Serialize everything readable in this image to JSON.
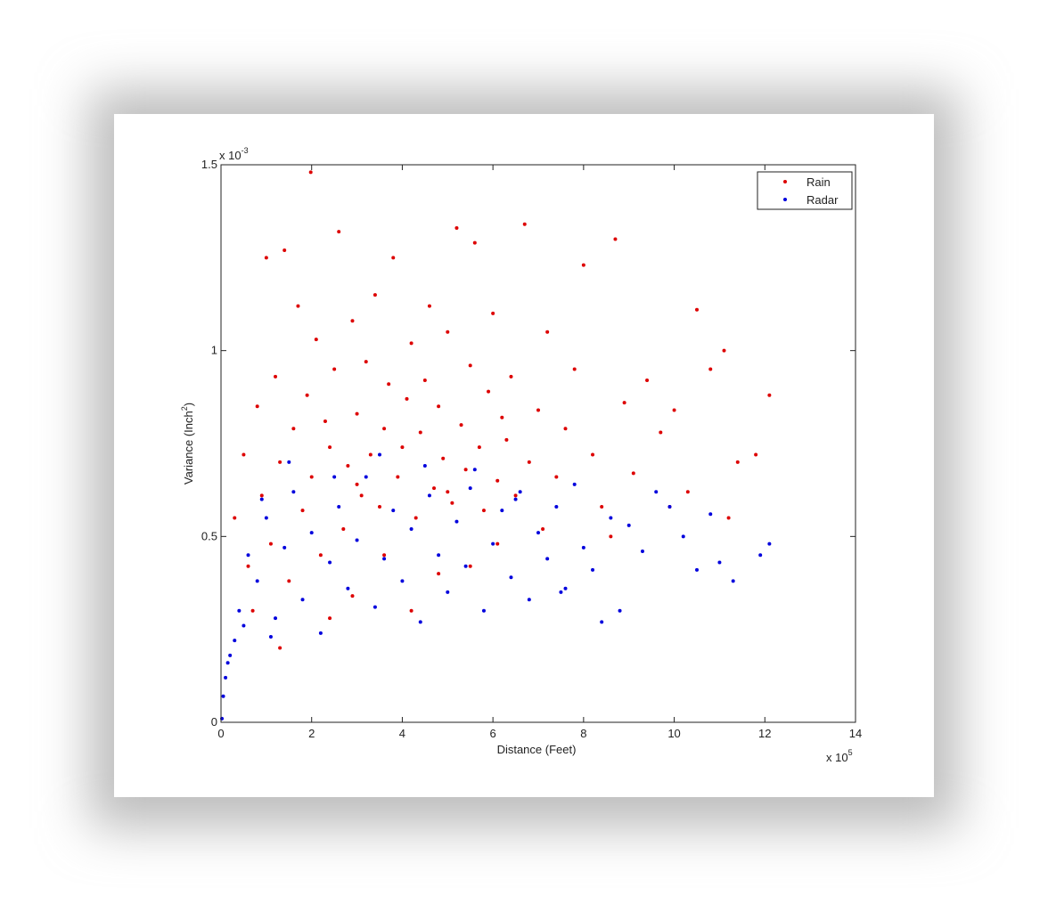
{
  "chart_data": {
    "type": "scatter",
    "xlabel": "Distance (Feet)",
    "x_exponent_base": "x 10",
    "x_exponent": "5",
    "ylabel_parts": [
      "Variance (Inch",
      "2",
      ")"
    ],
    "y_exponent_base": "x 10",
    "y_exponent": "-3",
    "xlim": [
      0,
      14
    ],
    "xticks": [
      0,
      2,
      4,
      6,
      8,
      10,
      12,
      14
    ],
    "ylim": [
      0,
      1.5
    ],
    "yticks": [
      0,
      0.5,
      1,
      1.5
    ],
    "grid": false,
    "legend": "upper right",
    "series": [
      {
        "name": "Rain",
        "color": "#dd0000",
        "x": [
          0.3,
          0.5,
          0.6,
          0.8,
          0.9,
          1.0,
          1.1,
          1.2,
          1.3,
          1.4,
          1.5,
          1.6,
          1.7,
          1.8,
          1.9,
          1.98,
          2.0,
          2.1,
          2.2,
          2.3,
          2.4,
          2.5,
          2.6,
          2.7,
          2.8,
          2.9,
          3.0,
          3.1,
          3.2,
          3.3,
          3.4,
          3.5,
          3.6,
          3.7,
          3.8,
          3.9,
          4.0,
          4.1,
          4.2,
          4.3,
          4.4,
          4.5,
          4.6,
          4.7,
          4.8,
          4.9,
          5.0,
          5.1,
          5.2,
          5.3,
          5.4,
          5.5,
          5.6,
          5.7,
          5.8,
          5.9,
          6.0,
          6.1,
          6.2,
          6.3,
          6.4,
          6.5,
          6.7,
          6.8,
          7.0,
          7.2,
          7.4,
          7.6,
          7.8,
          8.0,
          8.2,
          8.4,
          8.7,
          8.9,
          9.1,
          9.4,
          9.7,
          10.0,
          10.3,
          10.5,
          10.8,
          11.1,
          11.4,
          11.8,
          12.1,
          0.7,
          2.4,
          3.6,
          4.8,
          6.1,
          1.3,
          2.9,
          4.2,
          5.5,
          7.1,
          8.6,
          9.9,
          11.2,
          3.0,
          5.0
        ],
        "values": [
          0.55,
          0.72,
          0.42,
          0.85,
          0.61,
          1.25,
          0.48,
          0.93,
          0.7,
          1.27,
          0.38,
          0.79,
          1.12,
          0.57,
          0.88,
          1.48,
          0.66,
          1.03,
          0.45,
          0.81,
          0.74,
          0.95,
          1.32,
          0.52,
          0.69,
          1.08,
          0.83,
          0.61,
          0.97,
          0.72,
          1.15,
          0.58,
          0.79,
          0.91,
          1.25,
          0.66,
          0.74,
          0.87,
          1.02,
          0.55,
          0.78,
          0.92,
          1.12,
          0.63,
          0.85,
          0.71,
          1.05,
          0.59,
          1.33,
          0.8,
          0.68,
          0.96,
          1.29,
          0.74,
          0.57,
          0.89,
          1.1,
          0.65,
          0.82,
          0.76,
          0.93,
          0.61,
          1.34,
          0.7,
          0.84,
          1.05,
          0.66,
          0.79,
          0.95,
          1.23,
          0.72,
          0.58,
          1.3,
          0.86,
          0.67,
          0.92,
          0.78,
          0.84,
          0.62,
          1.11,
          0.95,
          1.0,
          0.7,
          0.72,
          0.88,
          0.3,
          0.28,
          0.45,
          0.4,
          0.48,
          0.2,
          0.34,
          0.3,
          0.42,
          0.52,
          0.5,
          0.58,
          0.55,
          0.64,
          0.62
        ]
      },
      {
        "name": "Radar",
        "color": "#0000dd",
        "x": [
          0.02,
          0.05,
          0.1,
          0.15,
          0.2,
          0.3,
          0.4,
          0.5,
          0.6,
          0.8,
          1.0,
          1.2,
          1.4,
          1.6,
          1.8,
          2.0,
          2.2,
          2.4,
          2.6,
          2.8,
          3.0,
          3.2,
          3.4,
          3.6,
          3.8,
          4.0,
          4.2,
          4.4,
          4.6,
          4.8,
          5.0,
          5.2,
          5.4,
          5.6,
          5.8,
          6.0,
          6.2,
          6.4,
          6.6,
          6.8,
          7.0,
          7.2,
          7.4,
          7.6,
          7.8,
          8.0,
          8.2,
          8.4,
          8.6,
          8.8,
          9.0,
          9.3,
          9.6,
          9.9,
          10.2,
          10.5,
          10.8,
          11.0,
          11.3,
          11.9,
          12.1,
          0.9,
          1.5,
          2.5,
          3.5,
          4.5,
          5.5,
          6.5,
          7.5,
          1.1
        ],
        "values": [
          0.01,
          0.07,
          0.12,
          0.16,
          0.18,
          0.22,
          0.3,
          0.26,
          0.45,
          0.38,
          0.55,
          0.28,
          0.47,
          0.62,
          0.33,
          0.51,
          0.24,
          0.43,
          0.58,
          0.36,
          0.49,
          0.66,
          0.31,
          0.44,
          0.57,
          0.38,
          0.52,
          0.27,
          0.61,
          0.45,
          0.35,
          0.54,
          0.42,
          0.68,
          0.3,
          0.48,
          0.57,
          0.39,
          0.62,
          0.33,
          0.51,
          0.44,
          0.58,
          0.36,
          0.64,
          0.47,
          0.41,
          0.27,
          0.55,
          0.3,
          0.53,
          0.46,
          0.62,
          0.58,
          0.5,
          0.41,
          0.56,
          0.43,
          0.38,
          0.45,
          0.48,
          0.6,
          0.7,
          0.66,
          0.72,
          0.69,
          0.63,
          0.6,
          0.35,
          0.23
        ]
      }
    ]
  }
}
